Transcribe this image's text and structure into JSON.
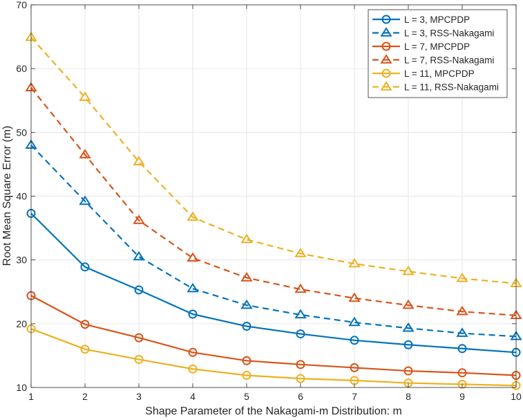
{
  "chart_data": {
    "type": "line",
    "title": "",
    "xlabel": "Shape Parameter of the Nakagami-m Distribution: m",
    "ylabel": "Root Mean Square Error (m)",
    "xlim": [
      1,
      10
    ],
    "ylim": [
      10,
      70
    ],
    "xticks": [
      1,
      2,
      3,
      4,
      5,
      6,
      7,
      8,
      9,
      10
    ],
    "yticks": [
      10,
      20,
      30,
      40,
      50,
      60,
      70
    ],
    "grid": true,
    "legend_position": "top-right",
    "x": [
      1,
      2,
      3,
      4,
      5,
      6,
      7,
      8,
      9,
      10
    ],
    "series": [
      {
        "name": "L = 3, MPCPDP",
        "color": "#0072BD",
        "style": "solid",
        "marker": "circle",
        "values": [
          37.3,
          28.9,
          25.3,
          21.5,
          19.6,
          18.4,
          17.4,
          16.7,
          16.1,
          15.5
        ]
      },
      {
        "name": "L = 3, RSS-Nakagami",
        "color": "#0072BD",
        "style": "dashed",
        "marker": "triangle",
        "values": [
          48.0,
          39.2,
          30.5,
          25.5,
          22.9,
          21.4,
          20.2,
          19.3,
          18.5,
          18.0
        ]
      },
      {
        "name": "L = 7, MPCPDP",
        "color": "#D95319",
        "style": "solid",
        "marker": "circle",
        "values": [
          24.4,
          19.9,
          17.8,
          15.5,
          14.2,
          13.6,
          13.1,
          12.6,
          12.3,
          11.9
        ]
      },
      {
        "name": "L = 7, RSS-Nakagami",
        "color": "#D95319",
        "style": "dashed",
        "marker": "triangle",
        "values": [
          57.0,
          46.5,
          36.2,
          30.3,
          27.2,
          25.4,
          24.0,
          22.9,
          21.9,
          21.3
        ]
      },
      {
        "name": "L = 11, MPCPDP",
        "color": "#EDB120",
        "style": "solid",
        "marker": "circle",
        "values": [
          19.2,
          16.0,
          14.4,
          12.9,
          11.9,
          11.4,
          11.1,
          10.7,
          10.5,
          10.3
        ]
      },
      {
        "name": "L = 11, RSS-Nakagami",
        "color": "#EDB120",
        "style": "dashed",
        "marker": "triangle",
        "values": [
          64.9,
          55.5,
          45.4,
          36.7,
          33.2,
          31.0,
          29.4,
          28.2,
          27.1,
          26.3
        ]
      }
    ]
  }
}
